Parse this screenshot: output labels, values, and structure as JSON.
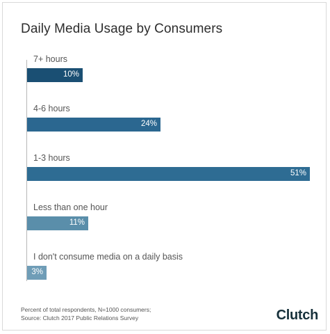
{
  "chart_data": {
    "type": "bar",
    "orientation": "horizontal",
    "title": "Daily Media Usage by Consumers",
    "categories": [
      "7+ hours",
      "4-6 hours",
      "1-3 hours",
      "Less than one hour",
      "I don't consume media on a daily basis"
    ],
    "values": [
      10,
      24,
      51,
      11,
      3
    ],
    "value_labels": [
      "10%",
      "24%",
      "51%",
      "11%",
      "3%"
    ],
    "colors": [
      "#1a4f73",
      "#2b6790",
      "#2e6c93",
      "#5a8eaa",
      "#6f9db7"
    ],
    "xlim": [
      0,
      51
    ],
    "grid": false,
    "legend": "none"
  },
  "footnote": {
    "line1": "Percent of total respondents, N=1000 consumers;",
    "line2": "Source: Clutch 2017 Public Relations Survey"
  },
  "brand": {
    "name": "Clutch"
  }
}
